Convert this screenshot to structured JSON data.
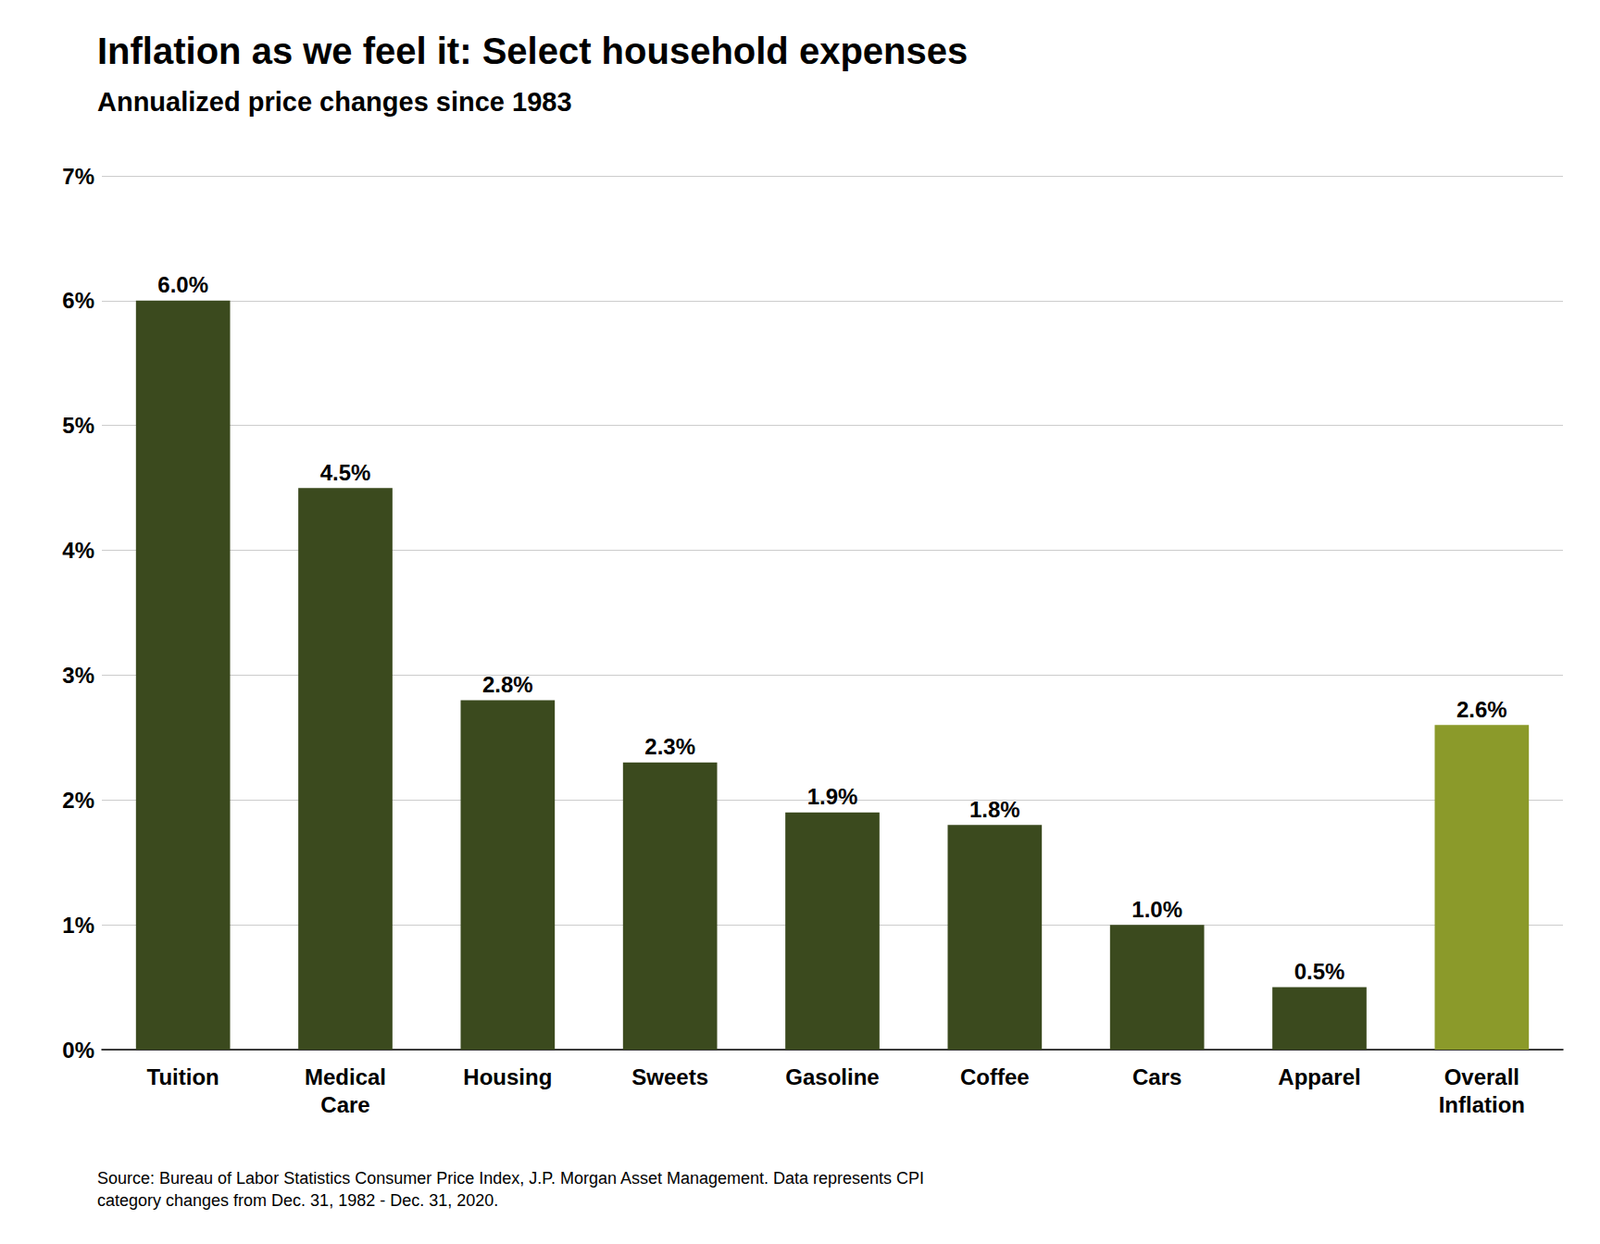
{
  "chart_data": {
    "type": "bar",
    "title": "Inflation as we feel it: Select household expenses",
    "subtitle": "Annualized price changes since 1983",
    "categories": [
      "Tuition",
      "Medical\nCare",
      "Housing",
      "Sweets",
      "Gasoline",
      "Coffee",
      "Cars",
      "Apparel",
      "Overall\nInflation"
    ],
    "values": [
      0.06,
      0.045,
      0.028,
      0.023,
      0.019,
      0.018,
      0.01,
      0.005,
      0.026
    ],
    "value_labels": [
      "6.0%",
      "4.5%",
      "2.8%",
      "2.3%",
      "1.9%",
      "1.8%",
      "1.0%",
      "0.5%",
      "2.6%"
    ],
    "colors": [
      "#3b4a1e",
      "#3b4a1e",
      "#3b4a1e",
      "#3b4a1e",
      "#3b4a1e",
      "#3b4a1e",
      "#3b4a1e",
      "#3b4a1e",
      "#8b9a2a"
    ],
    "ylim": [
      0,
      0.07
    ],
    "yticks": [
      {
        "value": 0.0,
        "label": "0%"
      },
      {
        "value": 0.01,
        "label": "1%"
      },
      {
        "value": 0.02,
        "label": "2%"
      },
      {
        "value": 0.03,
        "label": "3%"
      },
      {
        "value": 0.04,
        "label": "4%"
      },
      {
        "value": 0.05,
        "label": "5%"
      },
      {
        "value": 0.06,
        "label": "6%"
      },
      {
        "value": 0.07,
        "label": "7%"
      }
    ],
    "annotations": [
      "Source: Bureau of Labor Statistics Consumer Price Index, J.P. Morgan Asset Management. Data represents CPI",
      "category changes from Dec. 31, 1982 - Dec. 31, 2020."
    ],
    "grid": true,
    "data_labels": true
  }
}
